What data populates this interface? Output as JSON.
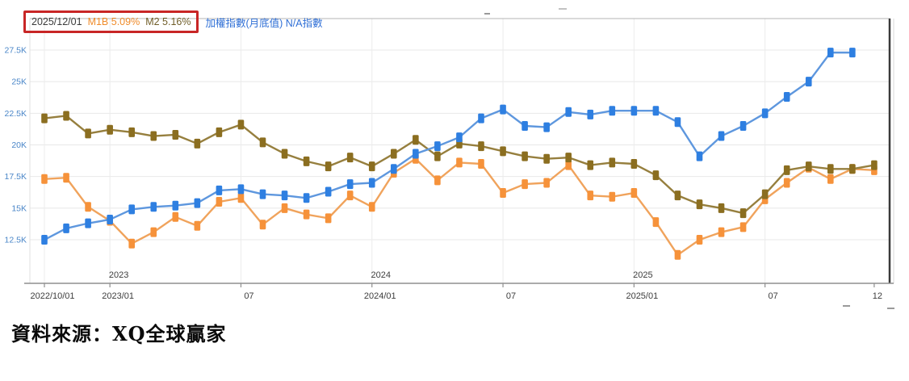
{
  "header": {
    "date": "2025/12/01",
    "m1b_label": "M1B 5.09%",
    "m2_label": "M2 5.16%",
    "index_label": "加權指數(月底值) N/A指數"
  },
  "source_caption": "資料來源：XQ全球贏家",
  "colors": {
    "annotation_box_red": "#c82626",
    "y_axis_label_blue": "#4a86c8",
    "x_axis_label_gray": "#3d3d3d",
    "gridline": "#e8e8e8",
    "axis_line": "#8f8f8f",
    "right_border_dark": "#3a3a3a"
  },
  "chart_data": {
    "type": "line",
    "title": "",
    "xlabel": "",
    "ylabel": "",
    "legend_position": "top-left",
    "grid": true,
    "ylim": [
      10.5,
      28.8
    ],
    "y_ticks": [
      {
        "label": "27.5K",
        "value": 27.5
      },
      {
        "label": "25K",
        "value": 25.0
      },
      {
        "label": "22.5K",
        "value": 22.5
      },
      {
        "label": "20K",
        "value": 20.0
      },
      {
        "label": "17.5K",
        "value": 17.5
      },
      {
        "label": "15K",
        "value": 15.0
      },
      {
        "label": "12.5K",
        "value": 12.5
      }
    ],
    "categories": [
      "2022/10",
      "2022/11",
      "2022/12",
      "2023/01",
      "2023/02",
      "2023/03",
      "2023/04",
      "2023/05",
      "2023/06",
      "2023/07",
      "2023/08",
      "2023/09",
      "2023/10",
      "2023/11",
      "2023/12",
      "2024/01",
      "2024/02",
      "2024/03",
      "2024/04",
      "2024/05",
      "2024/06",
      "2024/07",
      "2024/08",
      "2024/09",
      "2024/10",
      "2024/11",
      "2024/12",
      "2025/01",
      "2025/02",
      "2025/03",
      "2025/04",
      "2025/05",
      "2025/06",
      "2025/07",
      "2025/08",
      "2025/09",
      "2025/10",
      "2025/11",
      "2025/12"
    ],
    "x_ticks": [
      {
        "label": "2022/10/01",
        "month": 0
      },
      {
        "label": "2023/01",
        "month": 3
      },
      {
        "label": "07",
        "month": 9
      },
      {
        "label": "2024/01",
        "month": 15
      },
      {
        "label": "07",
        "month": 21
      },
      {
        "label": "2025/01",
        "month": 27
      },
      {
        "label": "07",
        "month": 33
      },
      {
        "label": "12",
        "month": 38
      }
    ],
    "year_labels": [
      {
        "label": "2023",
        "month": 3
      },
      {
        "label": "2024",
        "month": 15
      },
      {
        "label": "2025",
        "month": 27
      }
    ],
    "series": [
      {
        "name": "M1B",
        "color": "#f6923a",
        "line_color": "#f0a35c",
        "values": [
          17.3,
          17.4,
          15.1,
          14.0,
          12.2,
          13.1,
          14.3,
          13.6,
          15.5,
          15.8,
          13.7,
          15.0,
          14.5,
          14.2,
          16.0,
          15.1,
          17.8,
          18.9,
          17.2,
          18.6,
          18.5,
          16.2,
          16.9,
          17.0,
          18.4,
          16.0,
          15.9,
          16.2,
          13.9,
          11.3,
          12.5,
          13.1,
          13.5,
          15.7,
          17.0,
          18.2,
          17.3,
          18.1,
          18.0
        ]
      },
      {
        "name": "M2",
        "color": "#8b6e20",
        "line_color": "#967f3e",
        "values": [
          22.1,
          22.3,
          20.9,
          21.2,
          21.0,
          20.7,
          20.8,
          20.1,
          21.0,
          21.6,
          20.2,
          19.3,
          18.7,
          18.3,
          19.0,
          18.3,
          19.3,
          20.4,
          19.1,
          20.1,
          19.9,
          19.5,
          19.1,
          18.9,
          19.0,
          18.4,
          18.6,
          18.5,
          17.6,
          16.0,
          15.3,
          15.0,
          14.6,
          16.1,
          18.0,
          18.3,
          18.1,
          18.1,
          18.4
        ]
      },
      {
        "name": "加權指數(月底值)",
        "color": "#2e7fe1",
        "line_color": "#5e97de",
        "values": [
          12.5,
          13.4,
          13.8,
          14.1,
          14.9,
          15.1,
          15.2,
          15.4,
          16.4,
          16.5,
          16.1,
          16.0,
          15.8,
          16.3,
          16.9,
          17.0,
          18.1,
          19.3,
          19.9,
          20.6,
          22.1,
          22.8,
          21.5,
          21.4,
          22.6,
          22.4,
          22.7,
          22.7,
          22.7,
          21.8,
          19.1,
          20.7,
          21.5,
          22.5,
          23.8,
          25.0,
          27.3,
          27.3,
          null
        ]
      }
    ]
  }
}
